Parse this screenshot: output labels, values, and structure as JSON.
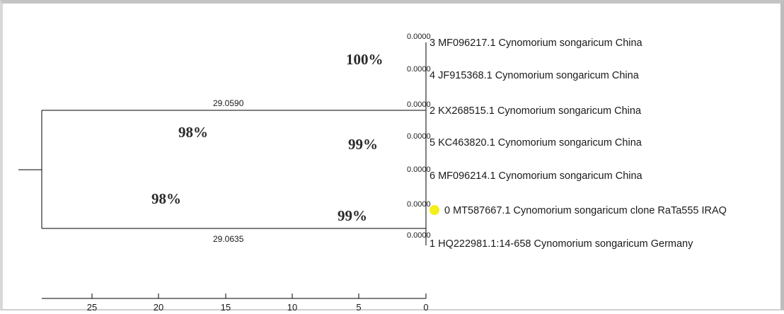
{
  "tree": {
    "leaves": [
      {
        "branch_value": "0.0000",
        "label": "3 MF096217.1 Cynomorium songaricum China"
      },
      {
        "branch_value": "0.0000",
        "label": "4 JF915368.1 Cynomorium songaricum China"
      },
      {
        "branch_value": "0.0000",
        "label": "2 KX268515.1 Cynomorium songaricum China"
      },
      {
        "branch_value": "0.0000",
        "label": "5 KC463820.1 Cynomorium songaricum China"
      },
      {
        "branch_value": "0.0000",
        "label": "6 MF096214.1 Cynomorium songaricum China"
      },
      {
        "branch_value": "0.0000",
        "label": "0 MT587667.1 Cynomorium songaricum clone RaTa555 IRAQ",
        "highlight_color": "#f3ee1c"
      },
      {
        "branch_value": "0.0000",
        "label": "1 HQ222981.1:14-658 Cynomorium songaricum Germany"
      }
    ],
    "branch_lengths": {
      "upper": "29.0590",
      "lower": "29.0635"
    },
    "bootstrap": [
      "100%",
      "98%",
      "99%",
      "98%",
      "99%"
    ],
    "scale_axis": {
      "ticks": [
        "25",
        "20",
        "15",
        "10",
        "5",
        "0"
      ]
    }
  }
}
